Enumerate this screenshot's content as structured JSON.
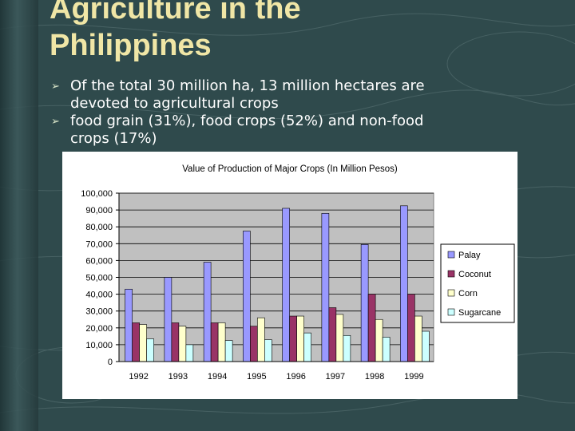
{
  "slide": {
    "title_lines": [
      "Agriculture in the",
      "Philippines"
    ],
    "bullets": [
      {
        "lines": [
          "Of the total 30 million ha, 13 million hectares are",
          "devoted to agricultural crops"
        ]
      },
      {
        "lines": [
          "food grain (31%), food crops (52%) and non-food",
          "crops (17%)"
        ]
      }
    ]
  },
  "chart_data": {
    "type": "bar",
    "title": "Value of Production of Major Crops (In Million Pesos)",
    "categories": [
      "1992",
      "1993",
      "1994",
      "1995",
      "1996",
      "1997",
      "1998",
      "1999"
    ],
    "series": [
      {
        "name": "Palay",
        "color": "#9999ff",
        "values": [
          43000,
          50000,
          59000,
          77500,
          91000,
          88000,
          69500,
          92500
        ]
      },
      {
        "name": "Coconut",
        "color": "#993366",
        "values": [
          23000,
          23000,
          23000,
          21000,
          27000,
          32000,
          40000,
          40000
        ]
      },
      {
        "name": "Corn",
        "color": "#ffffcc",
        "values": [
          22000,
          21000,
          23000,
          26000,
          27000,
          28000,
          25000,
          27000
        ]
      },
      {
        "name": "Sugarcane",
        "color": "#ccffff",
        "values": [
          13500,
          10000,
          12500,
          13000,
          17000,
          15500,
          14500,
          18000
        ]
      }
    ],
    "ylim": [
      0,
      100000
    ],
    "yticks": [
      "0",
      "10,000",
      "20,000",
      "30,000",
      "40,000",
      "50,000",
      "60,000",
      "70,000",
      "80,000",
      "90,000",
      "100,000"
    ],
    "legend": "right",
    "grid": true,
    "plot_background": "#c0c0c0"
  }
}
